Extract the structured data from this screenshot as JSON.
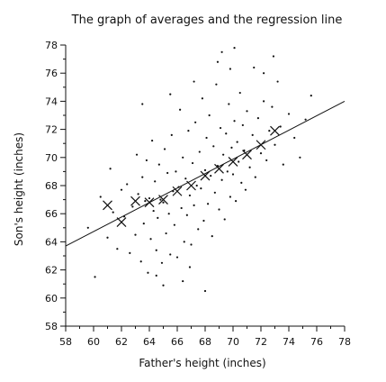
{
  "chart_data": {
    "type": "scatter",
    "title": "The graph of averages and the regression line",
    "xlabel": "Father's height (inches)",
    "ylabel": "Son's height (inches)",
    "xlim": [
      58,
      78
    ],
    "ylim": [
      58,
      78
    ],
    "x_ticks": [
      58,
      60,
      62,
      64,
      66,
      68,
      70,
      72,
      74,
      76,
      78
    ],
    "y_ticks": [
      58,
      60,
      62,
      64,
      66,
      68,
      70,
      72,
      74,
      76,
      78
    ],
    "grid": false,
    "legend": "none",
    "series": [
      {
        "type": "scatter",
        "marker": "dot",
        "points": [
          [
            59.6,
            65.0
          ],
          [
            60.1,
            61.5
          ],
          [
            60.5,
            67.2
          ],
          [
            61.0,
            64.3
          ],
          [
            61.2,
            69.2
          ],
          [
            61.4,
            66.1
          ],
          [
            61.7,
            63.5
          ],
          [
            62.0,
            67.7
          ],
          [
            62.2,
            65.8
          ],
          [
            62.4,
            68.1
          ],
          [
            62.6,
            63.2
          ],
          [
            62.8,
            66.5
          ],
          [
            63.0,
            64.5
          ],
          [
            63.1,
            70.2
          ],
          [
            63.2,
            67.4
          ],
          [
            63.4,
            62.6
          ],
          [
            63.5,
            68.6
          ],
          [
            63.6,
            65.3
          ],
          [
            63.7,
            66.9
          ],
          [
            63.8,
            69.8
          ],
          [
            63.9,
            61.8
          ],
          [
            64.0,
            67.1
          ],
          [
            64.1,
            64.2
          ],
          [
            64.2,
            71.2
          ],
          [
            64.3,
            66.2
          ],
          [
            64.4,
            68.3
          ],
          [
            64.5,
            63.4
          ],
          [
            64.6,
            65.7
          ],
          [
            64.7,
            69.5
          ],
          [
            64.8,
            67.0
          ],
          [
            64.9,
            62.5
          ],
          [
            65.0,
            66.8
          ],
          [
            65.1,
            70.6
          ],
          [
            65.2,
            64.6
          ],
          [
            65.3,
            68.9
          ],
          [
            65.4,
            66.0
          ],
          [
            65.5,
            63.1
          ],
          [
            65.6,
            71.6
          ],
          [
            65.7,
            67.6
          ],
          [
            65.8,
            65.2
          ],
          [
            65.9,
            69.0
          ],
          [
            66.0,
            62.9
          ],
          [
            66.1,
            67.9
          ],
          [
            66.2,
            73.4
          ],
          [
            66.3,
            66.4
          ],
          [
            66.4,
            70.0
          ],
          [
            66.5,
            64.0
          ],
          [
            66.6,
            68.5
          ],
          [
            66.7,
            65.9
          ],
          [
            66.8,
            71.9
          ],
          [
            66.9,
            67.3
          ],
          [
            67.0,
            63.8
          ],
          [
            67.1,
            69.6
          ],
          [
            67.2,
            66.6
          ],
          [
            67.3,
            72.5
          ],
          [
            67.4,
            68.0
          ],
          [
            67.5,
            64.9
          ],
          [
            67.6,
            70.4
          ],
          [
            67.7,
            67.8
          ],
          [
            67.8,
            74.2
          ],
          [
            67.9,
            65.5
          ],
          [
            68.0,
            69.1
          ],
          [
            68.1,
            71.4
          ],
          [
            68.2,
            66.7
          ],
          [
            68.3,
            73.0
          ],
          [
            68.4,
            68.7
          ],
          [
            68.5,
            64.4
          ],
          [
            68.6,
            70.8
          ],
          [
            68.7,
            67.5
          ],
          [
            68.8,
            75.2
          ],
          [
            68.9,
            69.4
          ],
          [
            69.0,
            66.3
          ],
          [
            69.1,
            72.1
          ],
          [
            69.2,
            68.4
          ],
          [
            69.3,
            70.2
          ],
          [
            69.4,
            65.6
          ],
          [
            69.5,
            71.7
          ],
          [
            69.6,
            69.0
          ],
          [
            69.7,
            73.8
          ],
          [
            69.8,
            67.2
          ],
          [
            69.9,
            70.7
          ],
          [
            70.0,
            68.8
          ],
          [
            70.1,
            72.6
          ],
          [
            70.2,
            66.9
          ],
          [
            70.3,
            71.1
          ],
          [
            70.4,
            69.7
          ],
          [
            70.5,
            74.6
          ],
          [
            70.6,
            68.2
          ],
          [
            70.7,
            72.3
          ],
          [
            70.8,
            70.5
          ],
          [
            70.9,
            67.7
          ],
          [
            71.0,
            73.3
          ],
          [
            71.2,
            69.3
          ],
          [
            71.4,
            71.6
          ],
          [
            71.6,
            68.6
          ],
          [
            71.8,
            72.8
          ],
          [
            72.0,
            70.3
          ],
          [
            72.2,
            74.0
          ],
          [
            72.4,
            69.8
          ],
          [
            72.6,
            71.9
          ],
          [
            72.8,
            73.6
          ],
          [
            73.0,
            70.9
          ],
          [
            73.2,
            75.4
          ],
          [
            73.4,
            72.2
          ],
          [
            73.6,
            69.5
          ],
          [
            74.0,
            73.1
          ],
          [
            74.4,
            71.4
          ],
          [
            74.8,
            70.0
          ],
          [
            75.2,
            72.7
          ],
          [
            75.6,
            74.4
          ],
          [
            69.2,
            77.5
          ],
          [
            70.1,
            77.8
          ],
          [
            68.9,
            76.8
          ],
          [
            71.5,
            76.4
          ],
          [
            72.9,
            77.2
          ],
          [
            68.0,
            60.5
          ],
          [
            66.4,
            61.2
          ],
          [
            65.0,
            60.9
          ],
          [
            64.5,
            61.6
          ],
          [
            66.9,
            62.2
          ],
          [
            72.2,
            76.0
          ],
          [
            69.8,
            76.3
          ],
          [
            67.2,
            75.4
          ],
          [
            65.5,
            74.5
          ],
          [
            63.5,
            73.8
          ]
        ]
      },
      {
        "type": "scatter",
        "marker": "x",
        "name": "averages",
        "points": [
          [
            61.0,
            66.6
          ],
          [
            62.0,
            65.4
          ],
          [
            63.0,
            66.9
          ],
          [
            64.0,
            66.8
          ],
          [
            65.0,
            67.0
          ],
          [
            66.0,
            67.6
          ],
          [
            67.0,
            68.0
          ],
          [
            68.0,
            68.7
          ],
          [
            69.0,
            69.2
          ],
          [
            70.0,
            69.7
          ],
          [
            71.0,
            70.2
          ],
          [
            72.0,
            70.9
          ],
          [
            73.0,
            71.9
          ]
        ]
      },
      {
        "type": "line",
        "name": "regression line",
        "points": [
          [
            58.0,
            63.7
          ],
          [
            78.0,
            74.0
          ]
        ]
      }
    ]
  }
}
